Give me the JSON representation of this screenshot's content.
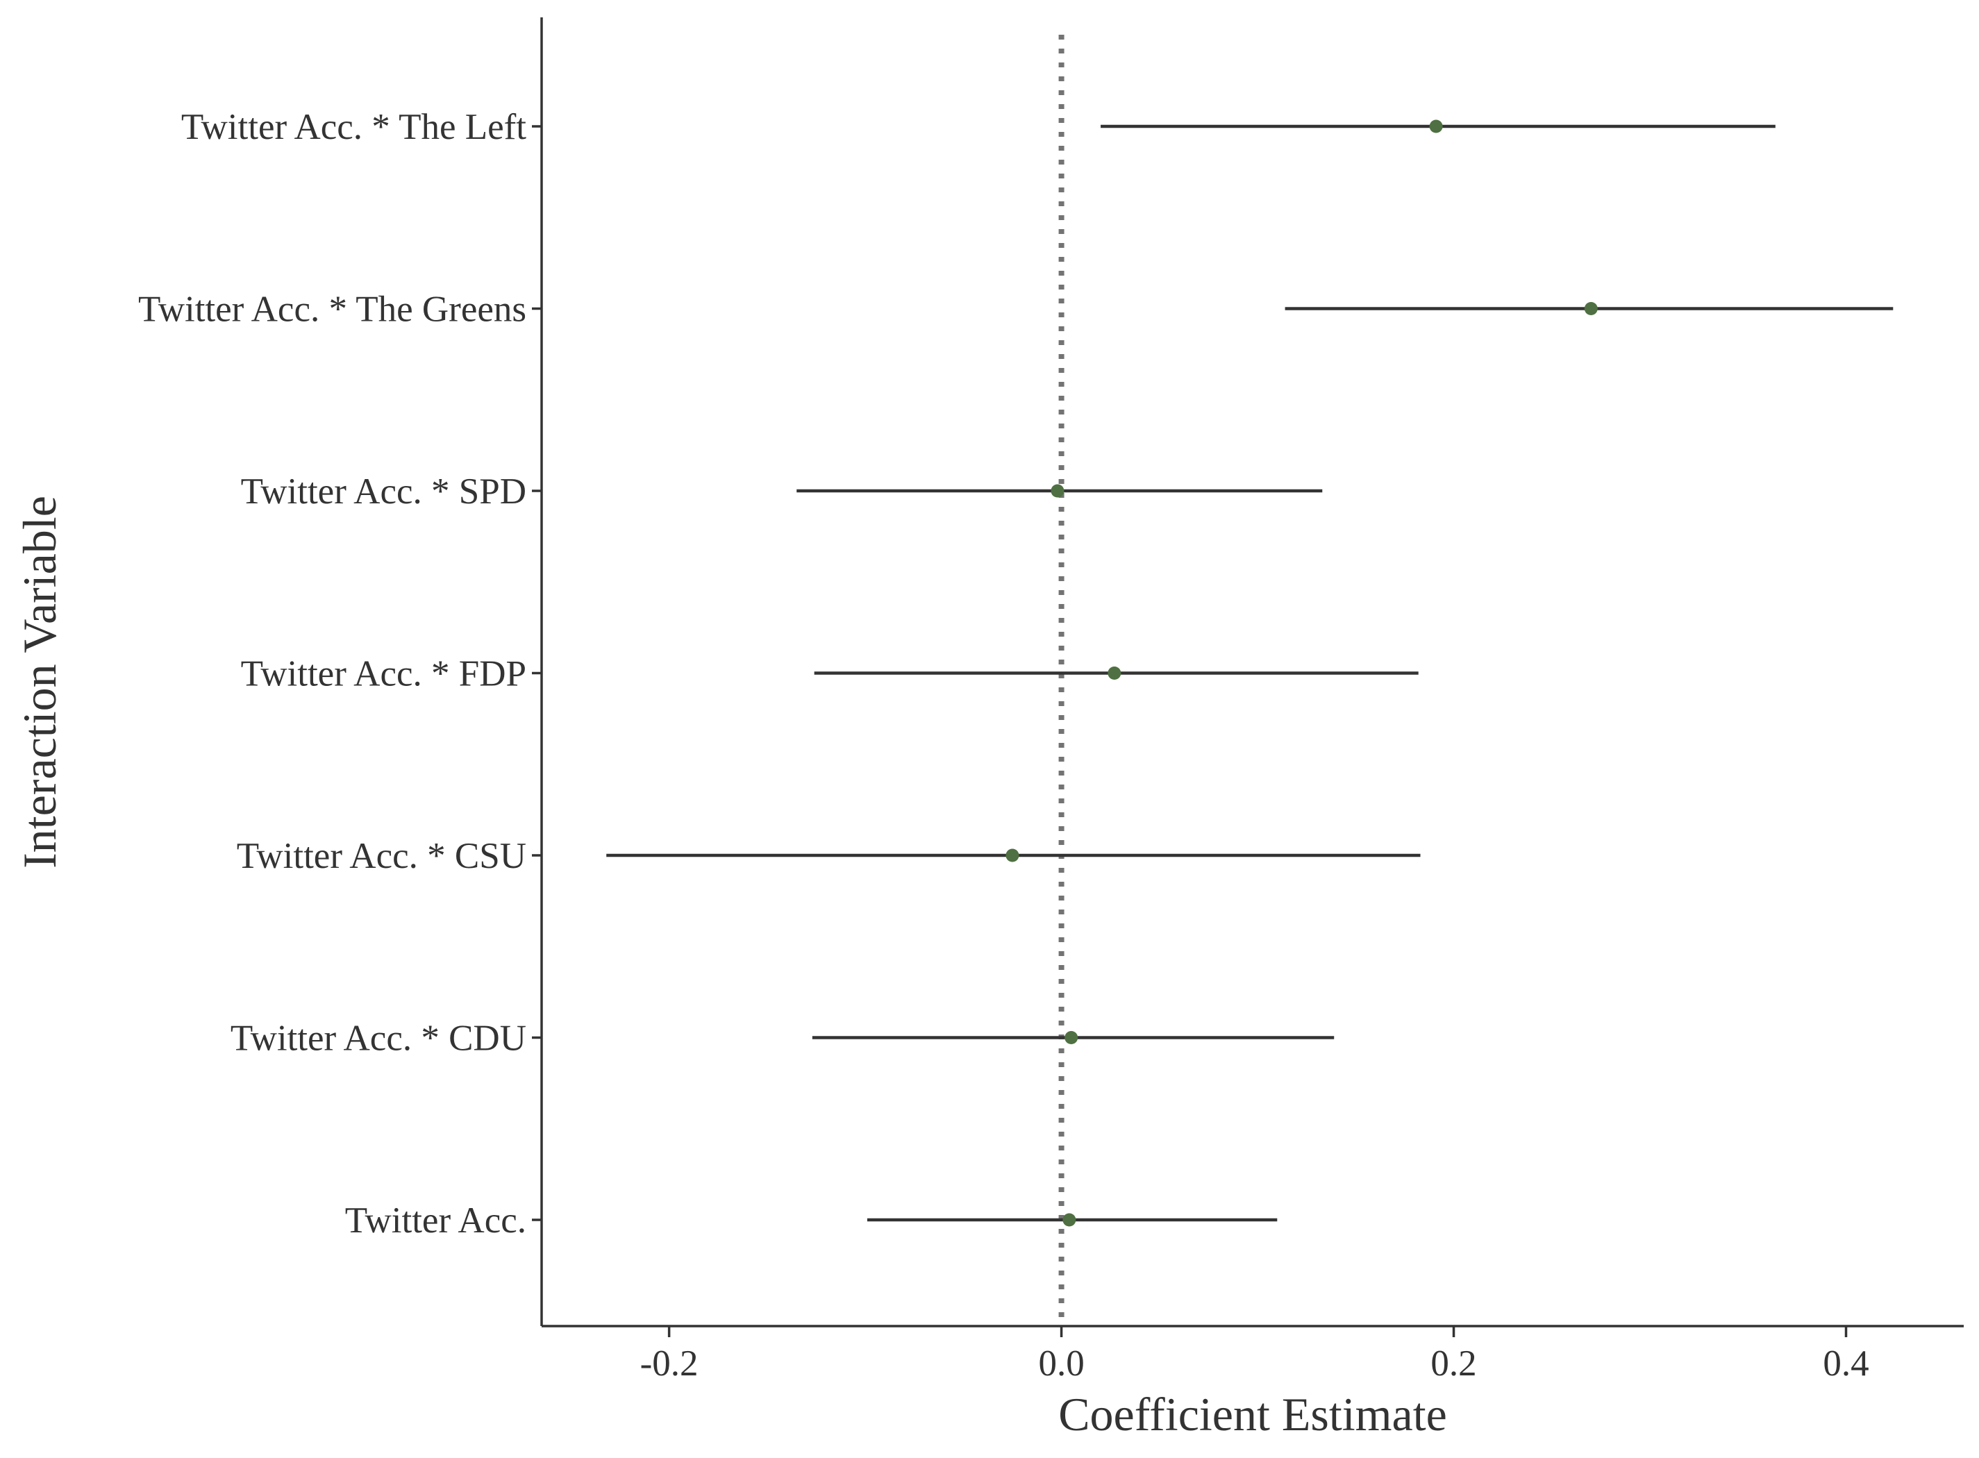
{
  "chart_data": {
    "type": "scatter",
    "subtype": "coefficient-plot",
    "title": "",
    "xlabel": "Coefficient Estimate",
    "ylabel": "Interaction Variable",
    "xlim": [
      -0.265,
      0.46
    ],
    "x_ticks": [
      -0.2,
      0.0,
      0.2,
      0.4
    ],
    "x_tick_labels": [
      "-0.2",
      "0.0",
      "0.2",
      "0.4"
    ],
    "reference_line": {
      "x": 0,
      "style": "dotted",
      "color": "#737373"
    },
    "categories": [
      "Twitter Acc. * The Left",
      "Twitter Acc. * The Greens",
      "Twitter Acc. * SPD",
      "Twitter Acc. * FDP",
      "Twitter Acc. * CSU",
      "Twitter Acc. * CDU",
      "Twitter Acc."
    ],
    "estimates": [
      0.191,
      0.27,
      -0.002,
      0.027,
      -0.025,
      0.005,
      0.004
    ],
    "ci_lower": [
      0.02,
      0.114,
      -0.135,
      -0.126,
      -0.232,
      -0.127,
      -0.099
    ],
    "ci_upper": [
      0.364,
      0.424,
      0.133,
      0.182,
      0.183,
      0.139,
      0.11
    ],
    "grid": false,
    "legend": "none",
    "point_color": "#4f7042",
    "line_color": "#333333"
  }
}
